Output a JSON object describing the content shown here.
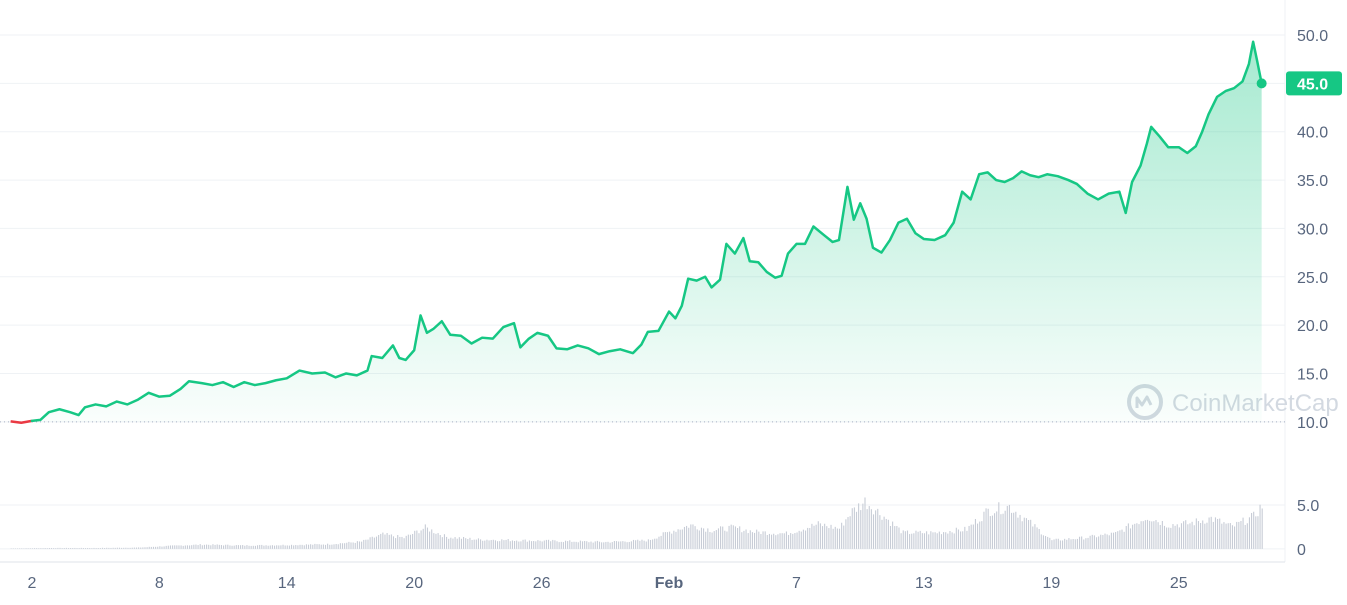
{
  "chart_data": {
    "type": "area",
    "price_axis": {
      "ticks": [
        "10.0",
        "15.0",
        "20.0",
        "25.0",
        "30.0",
        "35.0",
        "40.0",
        "45.0",
        "50.0"
      ],
      "ylim": [
        7.5,
        53
      ]
    },
    "volume_axis": {
      "ticks": [
        "0",
        "5.0"
      ],
      "ylim": [
        -1.5,
        9
      ]
    },
    "x_ticks": [
      {
        "day": 2,
        "label": "2",
        "bold": false
      },
      {
        "day": 8,
        "label": "8",
        "bold": false
      },
      {
        "day": 14,
        "label": "14",
        "bold": false
      },
      {
        "day": 20,
        "label": "20",
        "bold": false
      },
      {
        "day": 26,
        "label": "26",
        "bold": false
      },
      {
        "day": 32,
        "label": "Feb",
        "bold": true
      },
      {
        "day": 38,
        "label": "7",
        "bold": false
      },
      {
        "day": 44,
        "label": "13",
        "bold": false
      },
      {
        "day": 50,
        "label": "19",
        "bold": false
      },
      {
        "day": 56,
        "label": "25",
        "bold": false
      }
    ],
    "current_price": "45.0",
    "reference_price": 10.0,
    "colors": {
      "up": "#16c784",
      "down": "#ea3943",
      "fill_top": "#16c784",
      "volume": "#c7ccd6",
      "grid": "#eff2f5",
      "badge": "#16c784"
    },
    "price_series": [
      [
        1.0,
        10.05
      ],
      [
        1.5,
        9.9
      ],
      [
        2.0,
        10.1
      ],
      [
        2.4,
        10.2
      ],
      [
        2.8,
        11.0
      ],
      [
        3.3,
        11.3
      ],
      [
        3.8,
        11.0
      ],
      [
        4.2,
        10.7
      ],
      [
        4.5,
        11.5
      ],
      [
        5.0,
        11.8
      ],
      [
        5.5,
        11.6
      ],
      [
        6.0,
        12.1
      ],
      [
        6.5,
        11.8
      ],
      [
        7.0,
        12.3
      ],
      [
        7.5,
        13.0
      ],
      [
        8.0,
        12.6
      ],
      [
        8.5,
        12.7
      ],
      [
        9.0,
        13.4
      ],
      [
        9.4,
        14.2
      ],
      [
        10.0,
        14.0
      ],
      [
        10.5,
        13.8
      ],
      [
        11.0,
        14.1
      ],
      [
        11.5,
        13.6
      ],
      [
        12.0,
        14.1
      ],
      [
        12.5,
        13.8
      ],
      [
        13.0,
        14.0
      ],
      [
        13.5,
        14.3
      ],
      [
        14.0,
        14.5
      ],
      [
        14.6,
        15.3
      ],
      [
        15.2,
        15.0
      ],
      [
        15.8,
        15.1
      ],
      [
        16.3,
        14.6
      ],
      [
        16.8,
        15.0
      ],
      [
        17.3,
        14.8
      ],
      [
        17.8,
        15.3
      ],
      [
        18.0,
        16.8
      ],
      [
        18.5,
        16.6
      ],
      [
        19.0,
        17.9
      ],
      [
        19.3,
        16.6
      ],
      [
        19.6,
        16.4
      ],
      [
        20.0,
        17.4
      ],
      [
        20.3,
        21.0
      ],
      [
        20.6,
        19.2
      ],
      [
        20.9,
        19.6
      ],
      [
        21.3,
        20.4
      ],
      [
        21.7,
        19.0
      ],
      [
        22.2,
        18.9
      ],
      [
        22.7,
        18.1
      ],
      [
        23.2,
        18.7
      ],
      [
        23.7,
        18.6
      ],
      [
        24.2,
        19.8
      ],
      [
        24.7,
        20.2
      ],
      [
        25.0,
        17.7
      ],
      [
        25.4,
        18.6
      ],
      [
        25.8,
        19.2
      ],
      [
        26.3,
        18.9
      ],
      [
        26.7,
        17.6
      ],
      [
        27.2,
        17.5
      ],
      [
        27.7,
        17.9
      ],
      [
        28.2,
        17.6
      ],
      [
        28.7,
        17.0
      ],
      [
        29.2,
        17.3
      ],
      [
        29.7,
        17.5
      ],
      [
        30.3,
        17.1
      ],
      [
        30.7,
        18.0
      ],
      [
        31.0,
        19.3
      ],
      [
        31.5,
        19.4
      ],
      [
        32.0,
        21.4
      ],
      [
        32.3,
        20.7
      ],
      [
        32.6,
        22.0
      ],
      [
        32.9,
        24.8
      ],
      [
        33.3,
        24.6
      ],
      [
        33.7,
        25.0
      ],
      [
        34.0,
        23.9
      ],
      [
        34.4,
        24.7
      ],
      [
        34.7,
        28.4
      ],
      [
        35.1,
        27.4
      ],
      [
        35.5,
        29.0
      ],
      [
        35.8,
        26.6
      ],
      [
        36.2,
        26.5
      ],
      [
        36.6,
        25.5
      ],
      [
        37.0,
        24.9
      ],
      [
        37.3,
        25.1
      ],
      [
        37.6,
        27.4
      ],
      [
        38.0,
        28.4
      ],
      [
        38.4,
        28.4
      ],
      [
        38.8,
        30.2
      ],
      [
        39.3,
        29.3
      ],
      [
        39.7,
        28.6
      ],
      [
        40.0,
        28.8
      ],
      [
        40.4,
        34.3
      ],
      [
        40.7,
        30.9
      ],
      [
        41.0,
        32.6
      ],
      [
        41.3,
        31.0
      ],
      [
        41.6,
        28.0
      ],
      [
        42.0,
        27.5
      ],
      [
        42.4,
        28.8
      ],
      [
        42.8,
        30.6
      ],
      [
        43.2,
        31.0
      ],
      [
        43.6,
        29.5
      ],
      [
        44.0,
        28.9
      ],
      [
        44.5,
        28.8
      ],
      [
        45.0,
        29.3
      ],
      [
        45.4,
        30.6
      ],
      [
        45.8,
        33.8
      ],
      [
        46.2,
        33.0
      ],
      [
        46.6,
        35.6
      ],
      [
        47.0,
        35.8
      ],
      [
        47.4,
        35.0
      ],
      [
        47.8,
        34.8
      ],
      [
        48.2,
        35.2
      ],
      [
        48.6,
        35.9
      ],
      [
        49.0,
        35.5
      ],
      [
        49.4,
        35.3
      ],
      [
        49.8,
        35.6
      ],
      [
        50.3,
        35.4
      ],
      [
        50.8,
        35.0
      ],
      [
        51.2,
        34.6
      ],
      [
        51.7,
        33.6
      ],
      [
        52.2,
        33.0
      ],
      [
        52.7,
        33.6
      ],
      [
        53.2,
        33.8
      ],
      [
        53.5,
        31.6
      ],
      [
        53.8,
        34.8
      ],
      [
        54.2,
        36.5
      ],
      [
        54.5,
        38.8
      ],
      [
        54.7,
        40.5
      ],
      [
        55.1,
        39.5
      ],
      [
        55.5,
        38.4
      ],
      [
        56.0,
        38.4
      ],
      [
        56.4,
        37.8
      ],
      [
        56.8,
        38.5
      ],
      [
        57.1,
        40.0
      ],
      [
        57.4,
        41.8
      ],
      [
        57.8,
        43.6
      ],
      [
        58.2,
        44.2
      ],
      [
        58.6,
        44.5
      ],
      [
        59.0,
        45.2
      ],
      [
        59.3,
        47.0
      ],
      [
        59.5,
        49.3
      ],
      [
        59.7,
        47.2
      ],
      [
        59.9,
        45.0
      ]
    ],
    "volume_series": [
      [
        1,
        0.05
      ],
      [
        3,
        0.1
      ],
      [
        5,
        0.1
      ],
      [
        7,
        0.15
      ],
      [
        8.5,
        0.35
      ],
      [
        10,
        0.5
      ],
      [
        12,
        0.4
      ],
      [
        14,
        0.45
      ],
      [
        16,
        0.55
      ],
      [
        17.5,
        0.85
      ],
      [
        18.5,
        1.7
      ],
      [
        19.5,
        1.3
      ],
      [
        20.5,
        2.5
      ],
      [
        21.5,
        1.4
      ],
      [
        23,
        1.1
      ],
      [
        25,
        1.0
      ],
      [
        27,
        0.9
      ],
      [
        29,
        0.8
      ],
      [
        31,
        1.0
      ],
      [
        32,
        2.0
      ],
      [
        33,
        2.8
      ],
      [
        34,
        2.2
      ],
      [
        35,
        2.5
      ],
      [
        36,
        2.0
      ],
      [
        37.5,
        1.8
      ],
      [
        39,
        2.9
      ],
      [
        40,
        2.4
      ],
      [
        40.5,
        4.2
      ],
      [
        41.2,
        5.6
      ],
      [
        42,
        4.0
      ],
      [
        43,
        1.9
      ],
      [
        44.5,
        1.9
      ],
      [
        46,
        2.3
      ],
      [
        47,
        4.5
      ],
      [
        48,
        5.0
      ],
      [
        49,
        3.0
      ],
      [
        50,
        1.0
      ],
      [
        51.5,
        1.3
      ],
      [
        53,
        1.8
      ],
      [
        54.5,
        3.8
      ],
      [
        55.5,
        2.8
      ],
      [
        56.5,
        3.0
      ],
      [
        57.5,
        3.6
      ],
      [
        58.5,
        2.6
      ],
      [
        59.5,
        3.8
      ],
      [
        59.9,
        5.1
      ]
    ],
    "watermark": "CoinMarketCap"
  }
}
